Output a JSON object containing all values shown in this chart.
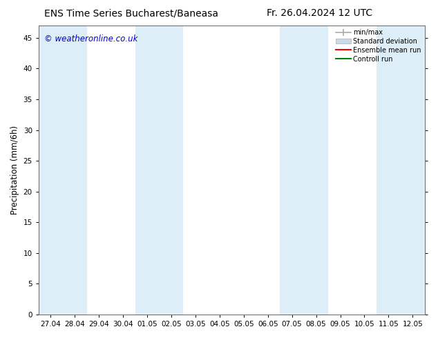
{
  "title_left": "ENS Time Series Bucharest/Baneasa",
  "title_right": "Fr. 26.04.2024 12 UTC",
  "ylabel": "Precipitation (mm/6h)",
  "watermark": "© weatheronline.co.uk",
  "ylim": [
    0,
    47
  ],
  "yticks": [
    0,
    5,
    10,
    15,
    20,
    25,
    30,
    35,
    40,
    45
  ],
  "xtick_labels": [
    "27.04",
    "28.04",
    "29.04",
    "30.04",
    "01.05",
    "02.05",
    "03.05",
    "04.05",
    "05.05",
    "06.05",
    "07.05",
    "08.05",
    "09.05",
    "10.05",
    "11.05",
    "12.05"
  ],
  "num_xticks": 16,
  "shaded_indices": [
    0,
    1,
    4,
    5,
    10,
    11,
    14,
    15
  ],
  "band_color": "#ddeef8",
  "background_color": "#ffffff",
  "plot_bg_color": "#ffffff",
  "title_fontsize": 10,
  "tick_fontsize": 7.5,
  "label_fontsize": 8.5,
  "watermark_color": "#0000cc",
  "legend_minmax_color": "#aaaaaa",
  "legend_std_color": "#c8dce8",
  "legend_mean_color": "#ff0000",
  "legend_control_color": "#008000"
}
